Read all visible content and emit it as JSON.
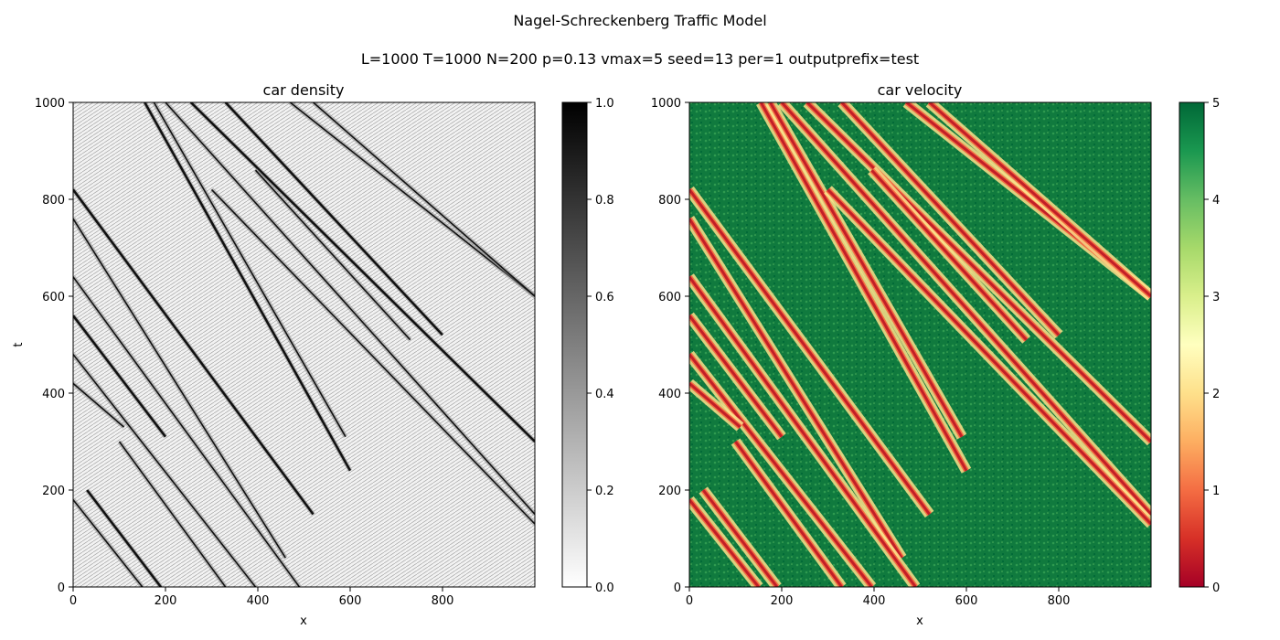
{
  "figure": {
    "suptitle": "Nagel-Schreckenberg Traffic Model",
    "subtitle": "L=1000 T=1000 N=200 p=0.13 vmax=5 seed=13 per=1 outputprefix=test"
  },
  "chart_data": [
    {
      "type": "heatmap",
      "title": "car density",
      "xlabel": "x",
      "ylabel": "t",
      "xlim": [
        0,
        1000
      ],
      "ylim": [
        0,
        1000
      ],
      "x_ticks": [
        "0",
        "200",
        "400",
        "600",
        "800"
      ],
      "y_ticks": [
        "0",
        "200",
        "400",
        "600",
        "800",
        "1000"
      ],
      "colormap": "gray_r",
      "colorbar": {
        "range": [
          0,
          1
        ],
        "ticks": [
          "0.0",
          "0.2",
          "0.4",
          "0.6",
          "0.8",
          "1.0"
        ]
      },
      "jam_lines": [
        [
          155,
          1000,
          600,
          240
        ],
        [
          175,
          1000,
          590,
          310
        ],
        [
          200,
          1000,
          1000,
          150
        ],
        [
          255,
          1000,
          1000,
          300
        ],
        [
          300,
          820,
          1000,
          130
        ],
        [
          395,
          860,
          730,
          510
        ],
        [
          330,
          1000,
          800,
          520
        ],
        [
          470,
          1000,
          1000,
          600
        ],
        [
          520,
          1000,
          1000,
          600
        ],
        [
          0,
          820,
          520,
          150
        ],
        [
          0,
          760,
          460,
          60
        ],
        [
          0,
          640,
          490,
          0
        ],
        [
          0,
          560,
          200,
          310
        ],
        [
          0,
          480,
          395,
          0
        ],
        [
          0,
          180,
          150,
          0
        ],
        [
          30,
          200,
          190,
          0
        ],
        [
          100,
          300,
          330,
          0
        ],
        [
          0,
          420,
          110,
          330
        ]
      ]
    },
    {
      "type": "heatmap",
      "title": "car velocity",
      "xlabel": "x",
      "ylabel": "",
      "xlim": [
        0,
        1000
      ],
      "ylim": [
        0,
        1000
      ],
      "x_ticks": [
        "0",
        "200",
        "400",
        "600",
        "800"
      ],
      "y_ticks": [
        "0",
        "200",
        "400",
        "600",
        "800",
        "1000"
      ],
      "colormap": "RdYlGn",
      "colorbar": {
        "range": [
          0,
          5
        ],
        "ticks": [
          "0",
          "1",
          "2",
          "3",
          "4",
          "5"
        ]
      }
    }
  ]
}
